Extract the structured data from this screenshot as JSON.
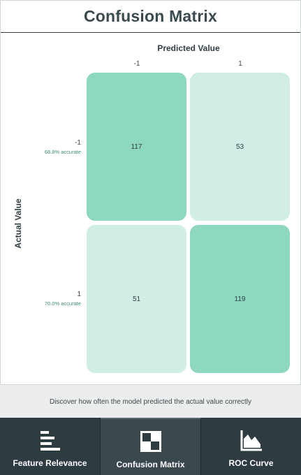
{
  "header": {
    "title": "Confusion Matrix"
  },
  "matrix": {
    "predicted_axis_label": "Predicted Value",
    "actual_axis_label": "Actual Value",
    "columns": [
      "-1",
      "1"
    ],
    "rows": [
      {
        "label": "-1",
        "accuracy": "68.8% accurate",
        "cells": [
          "117",
          "53"
        ]
      },
      {
        "label": "1",
        "accuracy": "70.0% accurate",
        "cells": [
          "51",
          "119"
        ]
      }
    ],
    "colors": {
      "correct": "#8dd8bf",
      "incorrect": "#d1eee6"
    }
  },
  "footer": {
    "description": "Discover how often the model predicted the actual value correctly"
  },
  "tabs": [
    {
      "label": "Feature Relevance",
      "icon": "bar-list-icon",
      "active": false
    },
    {
      "label": "Confusion Matrix",
      "icon": "matrix-icon",
      "active": true
    },
    {
      "label": "ROC Curve",
      "icon": "area-chart-icon",
      "active": false
    }
  ]
}
